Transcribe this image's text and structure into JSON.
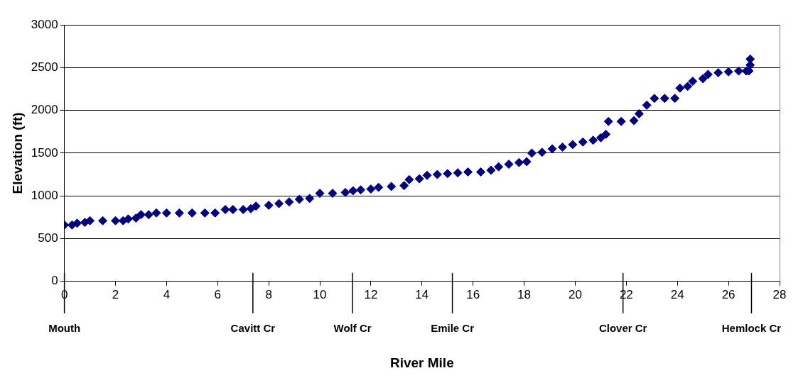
{
  "chart_data": {
    "type": "scatter",
    "xlabel": "River Mile",
    "ylabel": "Elevation (ft)",
    "marker": "diamond",
    "grid": "y",
    "legend": false,
    "xlim": [
      0,
      28
    ],
    "xticks": [
      0,
      2,
      4,
      6,
      8,
      10,
      12,
      14,
      16,
      18,
      20,
      22,
      24,
      26,
      28
    ],
    "ylim": [
      0,
      3000
    ],
    "yticks": [
      0,
      500,
      1000,
      1500,
      2000,
      2500,
      3000
    ],
    "ref_lines": [
      {
        "axis": "x",
        "value": 0,
        "label": "Mouth"
      },
      {
        "axis": "x",
        "value": 7.38,
        "label": "Cavitt Cr"
      },
      {
        "axis": "x",
        "value": 11.28,
        "label": "Wolf Cr"
      },
      {
        "axis": "x",
        "value": 15.19,
        "label": "Emile Cr"
      },
      {
        "axis": "x",
        "value": 21.87,
        "label": "Clover Cr"
      },
      {
        "axis": "x",
        "value": 26.9,
        "label": "Hemlock Cr"
      }
    ],
    "series": [
      {
        "color": "#000080",
        "x": [
          0,
          0.3,
          0.5,
          0.8,
          1.0,
          1.5,
          2.0,
          2.3,
          2.5,
          2.8,
          3.0,
          3.3,
          3.6,
          4.0,
          4.5,
          5.0,
          5.5,
          5.9,
          6.3,
          6.6,
          7.0,
          7.3,
          7.5,
          8.0,
          8.4,
          8.8,
          9.2,
          9.6,
          10.0,
          10.5,
          11.0,
          11.3,
          11.6,
          12.0,
          12.3,
          12.8,
          13.3,
          13.5,
          13.9,
          14.2,
          14.6,
          15.0,
          15.4,
          15.8,
          16.3,
          16.7,
          17.0,
          17.4,
          17.8,
          18.1,
          18.3,
          18.7,
          19.1,
          19.5,
          19.9,
          20.3,
          20.7,
          21.0,
          21.2,
          21.3,
          21.8,
          22.3,
          22.5,
          22.8,
          23.1,
          23.5,
          23.9,
          24.1,
          24.4,
          24.6,
          25.0,
          25.2,
          25.6,
          26.0,
          26.4,
          26.7,
          26.8,
          26.85,
          26.85
        ],
        "values": [
          660,
          660,
          680,
          690,
          710,
          710,
          710,
          710,
          730,
          740,
          780,
          780,
          800,
          800,
          800,
          800,
          800,
          800,
          840,
          840,
          840,
          850,
          880,
          890,
          910,
          930,
          960,
          970,
          1030,
          1030,
          1040,
          1060,
          1070,
          1080,
          1100,
          1110,
          1120,
          1190,
          1200,
          1240,
          1250,
          1260,
          1270,
          1280,
          1280,
          1300,
          1340,
          1370,
          1390,
          1400,
          1500,
          1510,
          1550,
          1570,
          1600,
          1630,
          1650,
          1680,
          1720,
          1870,
          1870,
          1880,
          1960,
          2060,
          2140,
          2140,
          2140,
          2260,
          2280,
          2340,
          2370,
          2420,
          2440,
          2450,
          2460,
          2460,
          2460,
          2530,
          2600
        ]
      }
    ]
  }
}
